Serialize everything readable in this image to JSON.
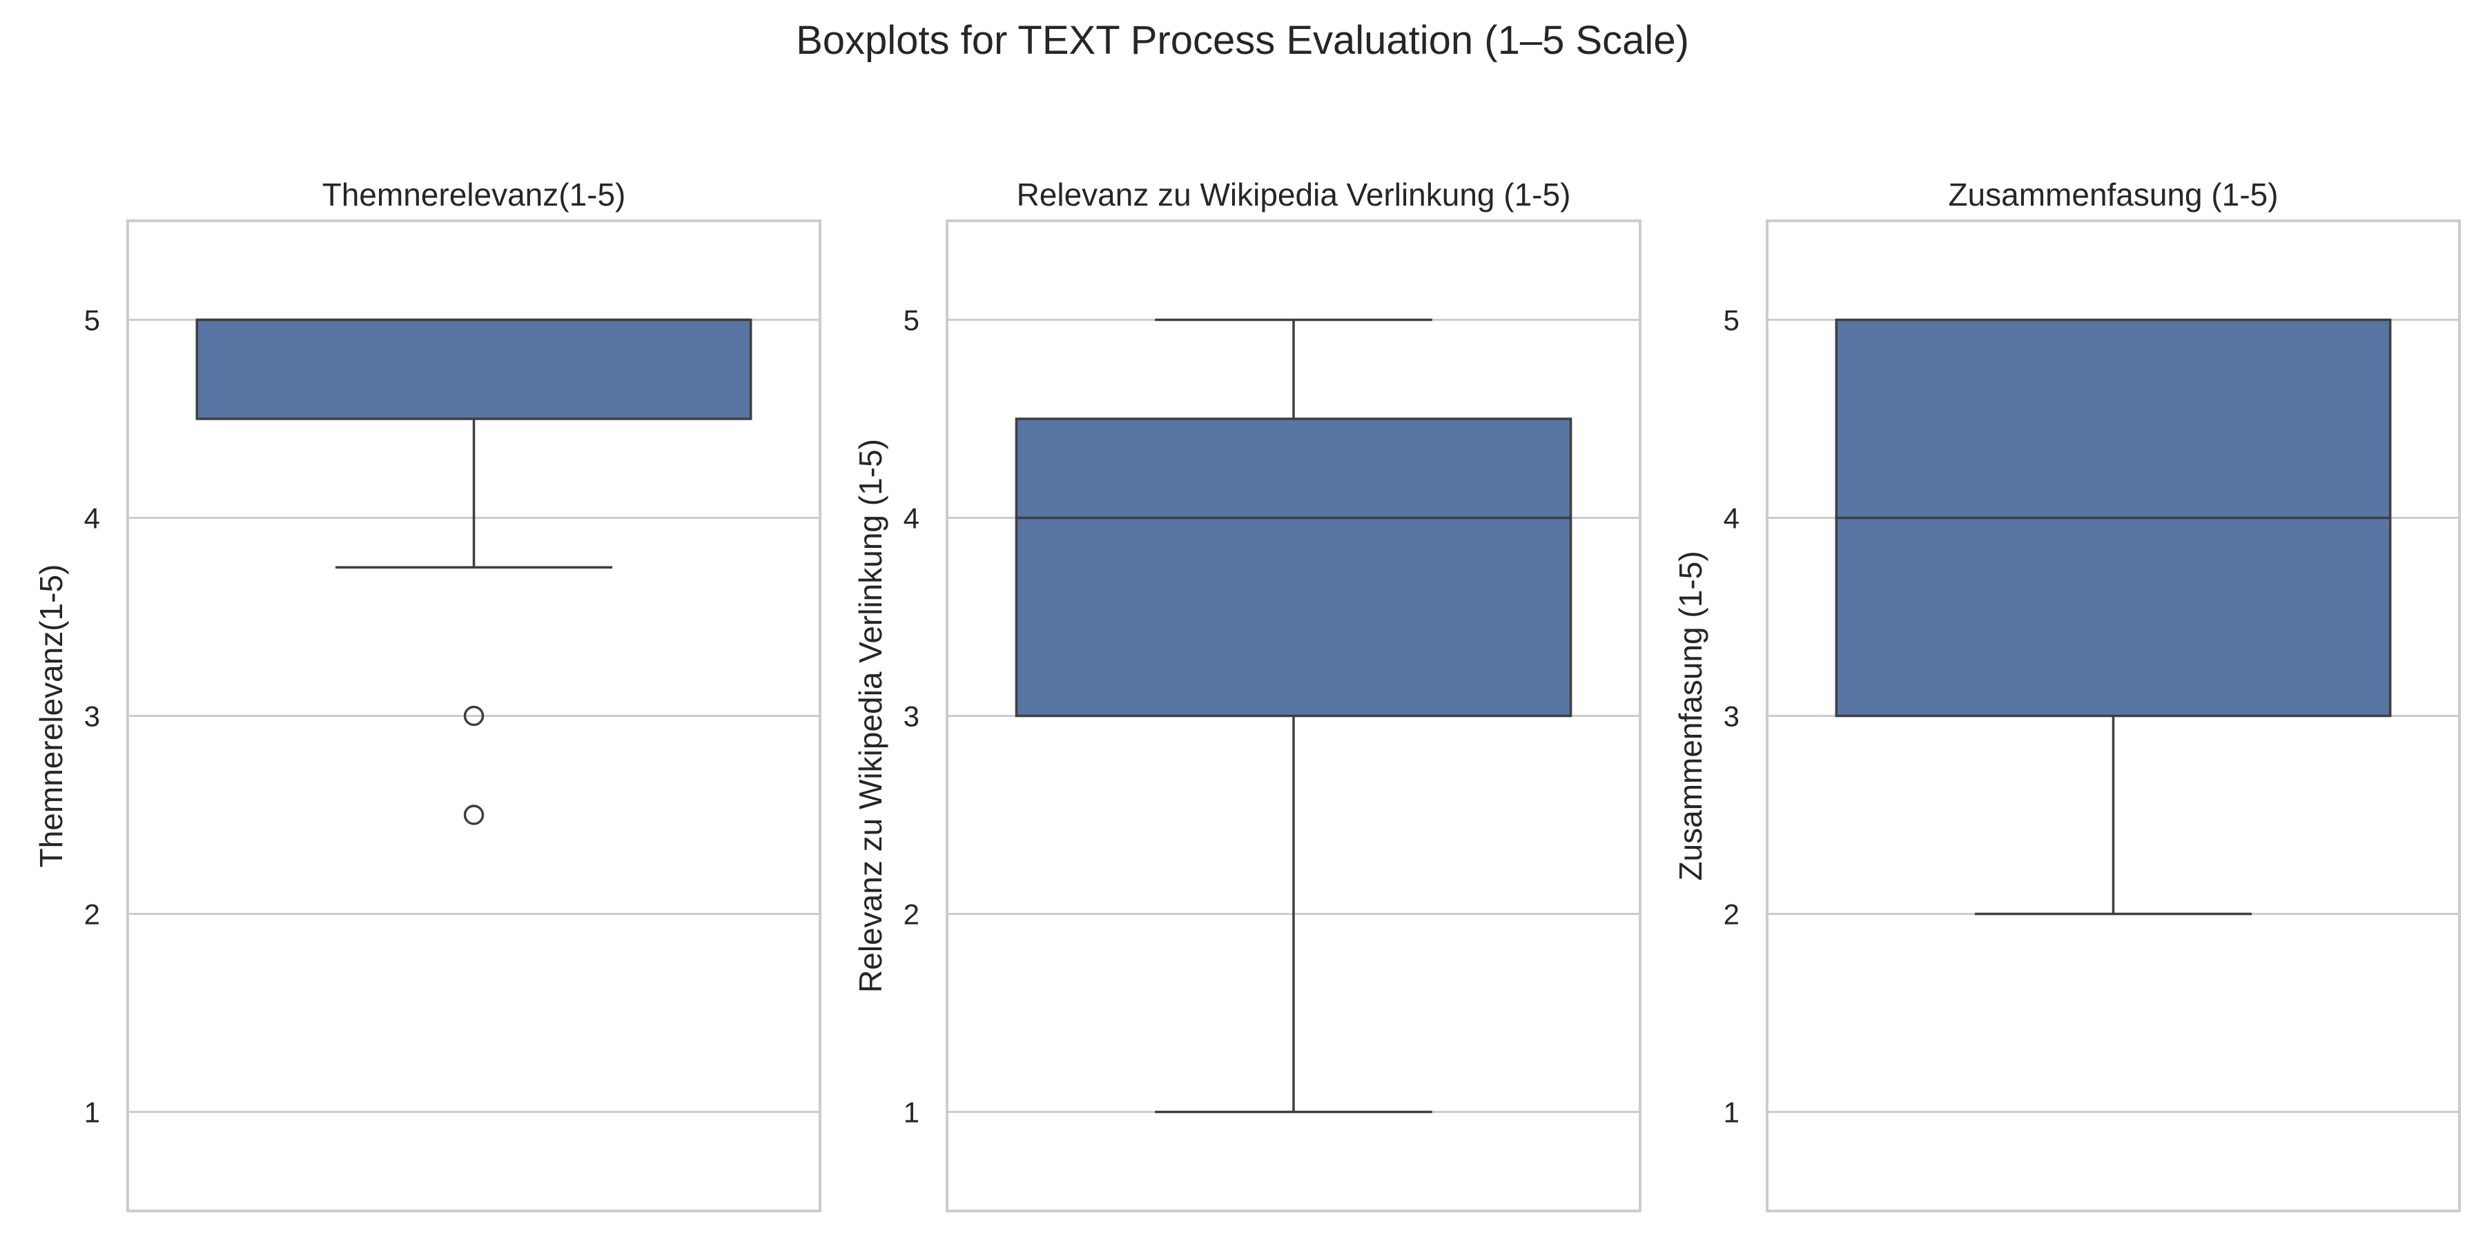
{
  "title": "Boxplots for TEXT Process Evaluation (1–5 Scale)",
  "colors": {
    "box_fill": "#5875a4",
    "line": "#3f3f3f",
    "grid": "#cccccc",
    "frame": "#cccccc",
    "text": "#262626"
  },
  "chart_data": [
    {
      "type": "box",
      "title": "Themnerelevanz(1-5)",
      "ylabel": "Themnerelevanz(1-5)",
      "ylim": [
        0.5,
        5.5
      ],
      "yticks": [
        1,
        2,
        3,
        4,
        5
      ],
      "grid": true,
      "box": {
        "whisker_low": 3.75,
        "q1": 4.5,
        "median": 5,
        "q3": 5,
        "whisker_high": 5
      },
      "outliers": [
        3,
        2.5
      ]
    },
    {
      "type": "box",
      "title": "Relevanz zu Wikipedia Verlinkung (1-5)",
      "ylabel": "Relevanz zu Wikipedia Verlinkung (1-5)",
      "ylim": [
        0.5,
        5.5
      ],
      "yticks": [
        1,
        2,
        3,
        4,
        5
      ],
      "grid": true,
      "box": {
        "whisker_low": 1,
        "q1": 3,
        "median": 4,
        "q3": 4.5,
        "whisker_high": 5
      },
      "outliers": []
    },
    {
      "type": "box",
      "title": "Zusammenfasung (1-5)",
      "ylabel": "Zusammenfasung (1-5)",
      "ylim": [
        0.5,
        5.5
      ],
      "yticks": [
        1,
        2,
        3,
        4,
        5
      ],
      "grid": true,
      "box": {
        "whisker_low": 2,
        "q1": 3,
        "median": 4,
        "q3": 5,
        "whisker_high": 5
      },
      "outliers": []
    }
  ]
}
